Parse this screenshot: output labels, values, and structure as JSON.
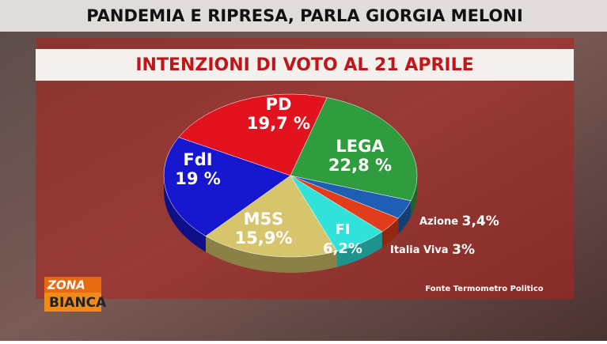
{
  "header": {
    "title": "PANDEMIA E RIPRESA, PARLA GIORGIA MELONI"
  },
  "logo": {
    "line1": "ZONA",
    "line2": "BIANCA"
  },
  "chart_data": {
    "type": "pie",
    "title": "INTENZIONI DI VOTO AL 21 APRILE",
    "source": "Fonte Termometro Politico",
    "categories": [
      "PD",
      "LEGA",
      "Azione",
      "Italia Viva",
      "FI",
      "M5S",
      "FdI"
    ],
    "values": [
      19.7,
      22.8,
      3.4,
      3,
      6.2,
      15.9,
      19
    ],
    "value_labels": [
      "19,7 %",
      "22,8 %",
      "3,4%",
      "3%",
      "6,2%",
      "15,9%",
      "19 %"
    ],
    "colors": [
      "#e2131f",
      "#2f9c3d",
      "#1f5fb3",
      "#e13c1b",
      "#30e2d9",
      "#d6c56c",
      "#1717cf"
    ]
  }
}
